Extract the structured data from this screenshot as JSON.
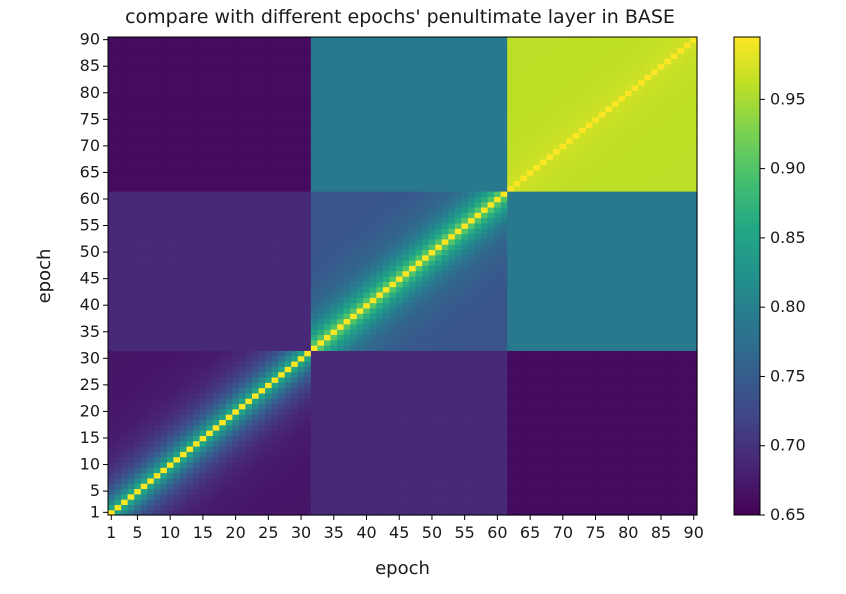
{
  "chart_data": {
    "type": "heatmap",
    "title": "compare with different epochs' penultimate layer in BASE",
    "xlabel": "epoch",
    "ylabel": "epoch",
    "x_range": [
      1,
      90
    ],
    "y_range": [
      1,
      90
    ],
    "x_ticks": [
      "1",
      "5",
      "10",
      "15",
      "20",
      "25",
      "30",
      "35",
      "40",
      "45",
      "50",
      "55",
      "60",
      "65",
      "70",
      "75",
      "80",
      "85",
      "90"
    ],
    "y_ticks": [
      "1",
      "5",
      "10",
      "15",
      "20",
      "25",
      "30",
      "35",
      "40",
      "45",
      "50",
      "55",
      "60",
      "65",
      "70",
      "75",
      "80",
      "85",
      "90"
    ],
    "colormap": "viridis",
    "colorbar": {
      "vmin": 0.65,
      "vmax": 0.995,
      "ticks": [
        "0.65",
        "0.70",
        "0.75",
        "0.80",
        "0.85",
        "0.90",
        "0.95"
      ]
    },
    "phase_boundaries": [
      31,
      61
    ],
    "phase_similarity": {
      "within_phase_1": {
        "near_diagonal": 0.85,
        "far": 0.67
      },
      "within_phase_2": {
        "near_diagonal": 0.9,
        "far": 0.74
      },
      "within_phase_3": {
        "near_diagonal": 0.97,
        "far": 0.96
      },
      "phase_1_vs_phase_2": 0.69,
      "phase_1_vs_phase_3": 0.66,
      "phase_2_vs_phase_3": 0.79
    },
    "diagonal_value": 0.995,
    "grid": false
  }
}
